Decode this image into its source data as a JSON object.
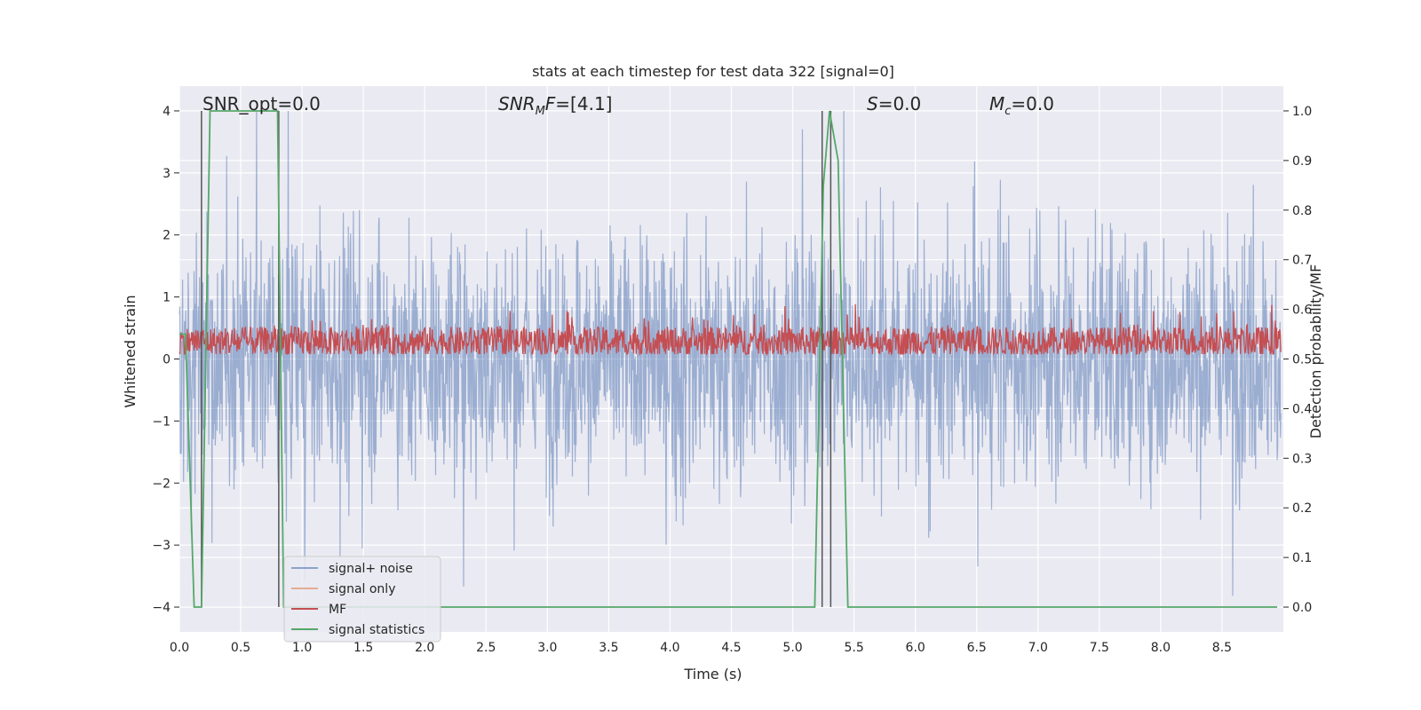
{
  "chart_data": {
    "type": "line",
    "title": "stats at each timestep for test data 322 [signal=0]",
    "xlabel": "Time (s)",
    "ylabel_left": "Whitened strain",
    "ylabel_right": "Detection probability/MF",
    "xlim": [
      0.0,
      9.0
    ],
    "ylim_left": [
      -4.4,
      4.4
    ],
    "ylim_right": [
      -0.05,
      1.05
    ],
    "x_ticks": [
      "0.0",
      "0.5",
      "1.0",
      "1.5",
      "2.0",
      "2.5",
      "3.0",
      "3.5",
      "4.0",
      "4.5",
      "5.0",
      "5.5",
      "6.0",
      "6.5",
      "7.0",
      "7.5",
      "8.0",
      "8.5"
    ],
    "y_ticks_left": [
      "−4",
      "−3",
      "−2",
      "−1",
      "0",
      "1",
      "2",
      "3",
      "4"
    ],
    "y_ticks_right": [
      "0.0",
      "0.1",
      "0.2",
      "0.3",
      "0.4",
      "0.5",
      "0.6",
      "0.7",
      "0.8",
      "0.9",
      "1.0"
    ],
    "grid": true,
    "legend_position": "lower-left",
    "annotations": {
      "snr_opt": "SNR_opt=0.0",
      "snr_mf": "=[4.1]",
      "s": "=0.0",
      "mc": "=0.0"
    },
    "series": [
      {
        "name": "signal+ noise",
        "color": "#4c72b0",
        "alpha": 0.5,
        "axis": "left",
        "description_range": [
          -4.0,
          4.0
        ]
      },
      {
        "name": "signal only",
        "color": "#dd8452",
        "alpha": 0.5,
        "axis": "left",
        "values": []
      },
      {
        "name": "MF",
        "color": "#c44e52",
        "axis": "right",
        "description_range": [
          0.51,
          0.62
        ]
      },
      {
        "name": "signal statistics",
        "color": "#55a868",
        "axis": "right",
        "x": [
          0.0,
          0.05,
          0.12,
          0.18,
          0.25,
          0.3,
          0.8,
          0.85,
          1.0,
          5.18,
          5.25,
          5.3,
          5.37,
          5.45,
          8.95
        ],
        "y": [
          0.55,
          0.55,
          0.0,
          0.0,
          1.0,
          1.0,
          1.0,
          0.0,
          0.0,
          0.0,
          0.85,
          1.0,
          0.9,
          0.0,
          0.0
        ]
      }
    ],
    "vlines": [
      0.18,
      0.81,
      5.24,
      5.31
    ]
  }
}
